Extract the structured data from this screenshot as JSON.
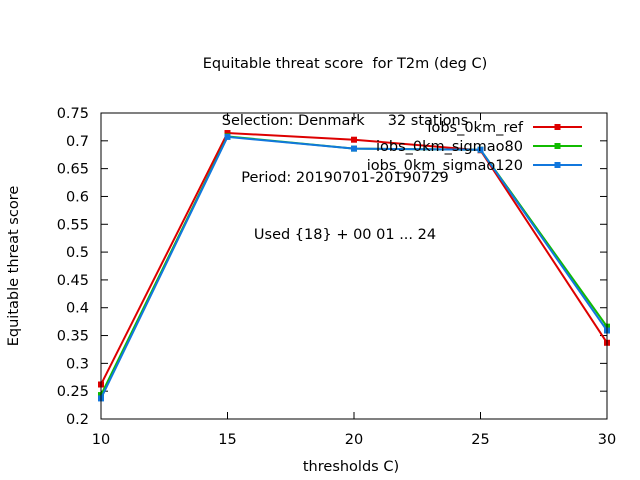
{
  "chart_data": {
    "type": "line",
    "title_lines": [
      "Equitable threat score  for T2m (deg C)",
      "Selection: Denmark     32 stations",
      "Period: 20190701-20190729",
      "Used {18} + 00 01 ... 24"
    ],
    "xlabel": "thresholds C)",
    "ylabel": "Equitable threat score",
    "x": [
      10,
      15,
      20,
      25,
      30
    ],
    "xlim": [
      10,
      30
    ],
    "ylim": [
      0.2,
      0.75
    ],
    "xticks": [
      "10",
      "15",
      "20",
      "25",
      "30"
    ],
    "yticks": [
      "0.2",
      "0.25",
      "0.3",
      "0.35",
      "0.4",
      "0.45",
      "0.5",
      "0.55",
      "0.6",
      "0.65",
      "0.7",
      "0.75"
    ],
    "legend_position": "top-right",
    "grid": false,
    "series": [
      {
        "name": "iobs_0km_ref",
        "color": "#dd0000",
        "values": [
          0.262,
          0.714,
          0.702,
          0.683,
          0.337
        ]
      },
      {
        "name": "iobs_0km_sigmao80",
        "color": "#11bb00",
        "values": [
          0.243,
          0.708,
          0.686,
          0.684,
          0.366
        ]
      },
      {
        "name": "iobs_0km_sigmao120",
        "color": "#1177dd",
        "values": [
          0.237,
          0.707,
          0.686,
          0.684,
          0.359
        ]
      }
    ]
  }
}
